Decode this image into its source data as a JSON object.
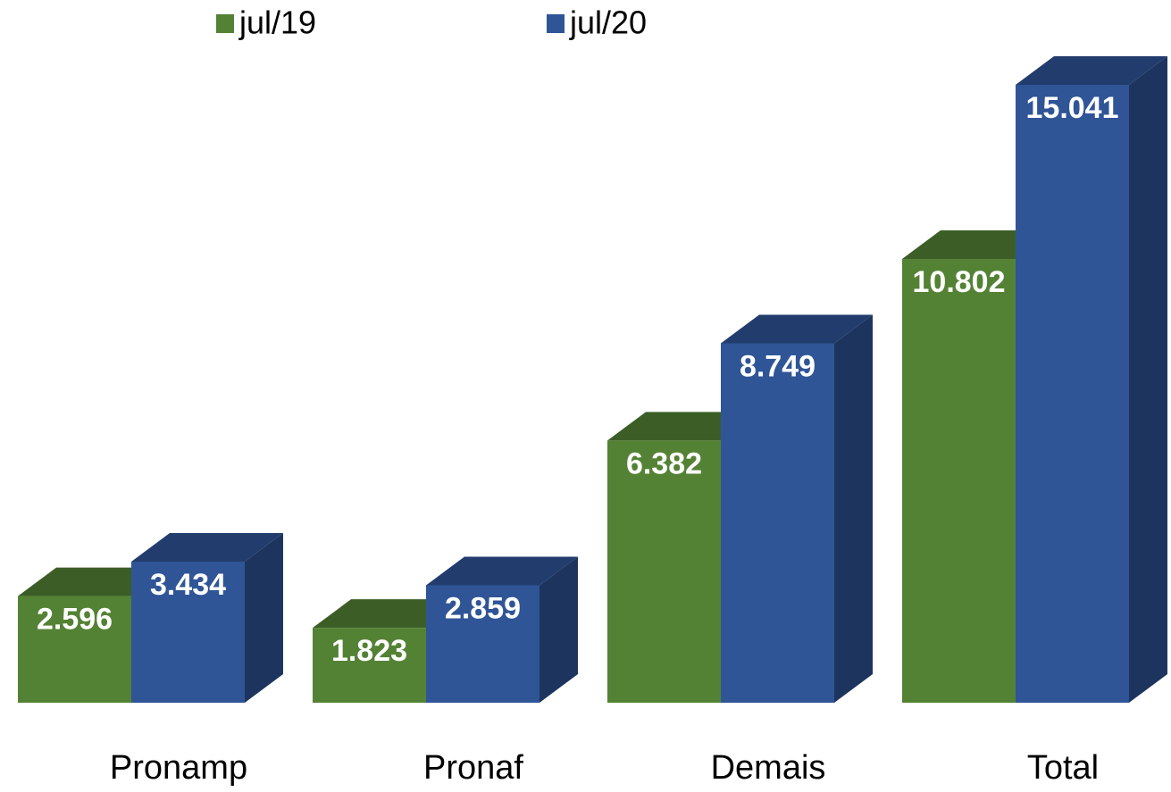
{
  "chart_data": {
    "type": "bar3d",
    "categories": [
      "Pronamp",
      "Pronaf",
      "Demais",
      "Total"
    ],
    "series": [
      {
        "name": "jul/19",
        "color": "#548235",
        "values": [
          2596,
          1823,
          6382,
          10802
        ],
        "value_labels": [
          "2.596",
          "1.823",
          "6.382",
          "10.802"
        ]
      },
      {
        "name": "jul/20",
        "color": "#2f5597",
        "values": [
          3434,
          2859,
          8749,
          15041
        ],
        "value_labels": [
          "3.434",
          "2.859",
          "8.749",
          "15.041"
        ]
      }
    ],
    "legend": "top"
  }
}
